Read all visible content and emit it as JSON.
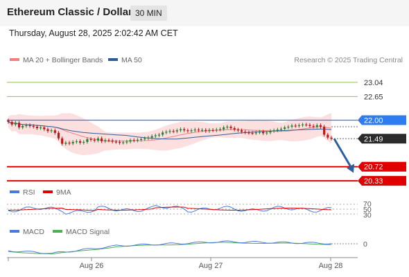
{
  "header": {
    "title": "Ethereum Classic / Dollar",
    "timeframe": "30 MIN",
    "datetime": "Thursday, August 28, 2025 2:02:42 AM CET"
  },
  "legend": {
    "items": [
      {
        "label": "MA 20 + Bollinger Bands",
        "color": "#f08080"
      },
      {
        "label": "MA 50",
        "color": "#2e5b94"
      }
    ],
    "credit": "Research © 2025 Trading Central"
  },
  "chart_data": [
    {
      "type": "candlestick",
      "x_ticks": [
        "Aug 26",
        "Aug 27",
        "Aug 28"
      ],
      "y_range": [
        20.2,
        23.4
      ],
      "candles_close": [
        21.95,
        21.88,
        21.93,
        21.8,
        21.84,
        21.86,
        21.84,
        21.82,
        21.78,
        21.8,
        21.75,
        21.7,
        21.72,
        21.65,
        21.5,
        21.35,
        21.38,
        21.36,
        21.4,
        21.42,
        21.38,
        21.4,
        21.48,
        21.46,
        21.44,
        21.5,
        21.42,
        21.45,
        21.44,
        21.41,
        21.4,
        21.38,
        21.39,
        21.41,
        21.45,
        21.44,
        21.46,
        21.48,
        21.5,
        21.52,
        21.56,
        21.58,
        21.6,
        21.66,
        21.68,
        21.7,
        21.69,
        21.72,
        21.75,
        21.72,
        21.7,
        21.72,
        21.74,
        21.72,
        21.73,
        21.7,
        21.73,
        21.72,
        21.74,
        21.75,
        21.8,
        21.82,
        21.78,
        21.74,
        21.72,
        21.68,
        21.66,
        21.65,
        21.64,
        21.66,
        21.68,
        21.64,
        21.66,
        21.7,
        21.72,
        21.74,
        21.76,
        21.8,
        21.82,
        21.85,
        21.84,
        21.86,
        21.88,
        21.87,
        21.84,
        21.82,
        21.86,
        21.82,
        21.6,
        21.52,
        21.49
      ],
      "levels": [
        {
          "label": "23.04",
          "value": 23.04,
          "kind": "resistance"
        },
        {
          "label": "22.65",
          "value": 22.65,
          "kind": "resistance"
        },
        {
          "label": "22.00",
          "value": 22.0,
          "kind": "pivot"
        },
        {
          "label": "21.49",
          "value": 21.49,
          "kind": "last"
        },
        {
          "label": "20.72",
          "value": 20.72,
          "kind": "support"
        },
        {
          "label": "20.33",
          "value": 20.33,
          "kind": "support"
        }
      ],
      "colors": {
        "resistance": "#8bc34a",
        "pivot": "#2e7df0",
        "last": "#2b2b2b",
        "support": "#e00000",
        "up": "#2e7d32",
        "down": "#b71c1c",
        "bands": "#fbd6d6",
        "ma20": "#f08080",
        "ma50": "#2e5b94",
        "forecast": "#2d5e9e"
      }
    },
    {
      "type": "line",
      "title": "RSI",
      "series": [
        {
          "name": "RSI",
          "color": "#4a7ad9"
        },
        {
          "name": "9MA",
          "color": "#e00000"
        }
      ],
      "y_labels": [
        "70",
        "50",
        "30"
      ]
    },
    {
      "type": "line",
      "title": "MACD",
      "series": [
        {
          "name": "MACD",
          "color": "#4a7ad9"
        },
        {
          "name": "MACD Signal",
          "color": "#4caf50"
        }
      ],
      "y_labels": [
        "0"
      ]
    }
  ]
}
